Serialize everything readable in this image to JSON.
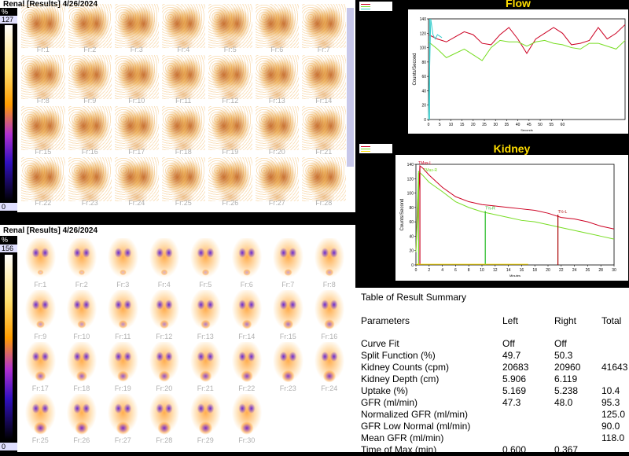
{
  "panel_top": {
    "title": "Renal [Results] 4/26/2024",
    "scale_unit": "%",
    "scale_max": "127",
    "scale_min": "0",
    "frames": [
      "Fr:1",
      "Fr:2",
      "Fr:3",
      "Fr:4",
      "Fr:5",
      "Fr:6",
      "Fr:7",
      "Fr:8",
      "Fr:9",
      "Fr:10",
      "Fr:11",
      "Fr:12",
      "Fr:13",
      "Fr:14",
      "Fr:15",
      "Fr:16",
      "Fr:17",
      "Fr:18",
      "Fr:19",
      "Fr:20",
      "Fr:21",
      "Fr:22",
      "Fr:23",
      "Fr:24",
      "Fr:25",
      "Fr:26",
      "Fr:27",
      "Fr:28"
    ]
  },
  "panel_bottom": {
    "title": "Renal [Results] 4/26/2024",
    "scale_unit": "%",
    "scale_max": "156",
    "scale_min": "0",
    "frames": [
      "Fr:1",
      "Fr:2",
      "Fr:3",
      "Fr:4",
      "Fr:5",
      "Fr:6",
      "Fr:7",
      "Fr:8",
      "Fr:9",
      "Fr:10",
      "Fr:11",
      "Fr:12",
      "Fr:13",
      "Fr:14",
      "Fr:15",
      "Fr:16",
      "Fr:17",
      "Fr:18",
      "Fr:19",
      "Fr:20",
      "Fr:21",
      "Fr:22",
      "Fr:23",
      "Fr:24",
      "Fr:25",
      "Fr:26",
      "Fr:27",
      "Fr:28",
      "Fr:29",
      "Fr:30"
    ]
  },
  "colors": {
    "left_curve": "#cc0022",
    "right_curve": "#77dd22",
    "title": "#ffde00",
    "aorta": "#33cccc"
  },
  "chart_data": [
    {
      "type": "line",
      "title": "Flow",
      "xlabel": "Seconds",
      "ylabel": "Counts/Second",
      "xlim": [
        0,
        88
      ],
      "ylim": [
        0,
        140
      ],
      "xticks": [
        0,
        5,
        10,
        15,
        20,
        25,
        30,
        35,
        40,
        45,
        50,
        55,
        60
      ],
      "yticks": [
        0,
        20,
        40,
        60,
        80,
        100,
        120,
        140
      ],
      "series": [
        {
          "name": "Left",
          "color": "#cc0022",
          "x": [
            0,
            4,
            8,
            12,
            16,
            20,
            24,
            28,
            32,
            36,
            40,
            44,
            48,
            52,
            56,
            60,
            64,
            68,
            72,
            76,
            80,
            84,
            88
          ],
          "values": [
            118,
            112,
            108,
            115,
            122,
            118,
            106,
            104,
            118,
            128,
            112,
            92,
            112,
            120,
            128,
            120,
            104,
            106,
            110,
            128,
            112,
            120,
            132
          ]
        },
        {
          "name": "Right",
          "color": "#77dd22",
          "x": [
            0,
            4,
            8,
            12,
            16,
            20,
            24,
            28,
            32,
            36,
            40,
            44,
            48,
            52,
            56,
            60,
            64,
            68,
            72,
            76,
            80,
            84,
            88
          ],
          "values": [
            108,
            98,
            86,
            92,
            98,
            90,
            82,
            100,
            110,
            108,
            108,
            102,
            108,
            110,
            106,
            104,
            100,
            98,
            106,
            106,
            102,
            98,
            110
          ]
        },
        {
          "name": "Aorta",
          "color": "#33cccc",
          "x": [
            0,
            1,
            2,
            3,
            4,
            6
          ],
          "values": [
            0,
            140,
            118,
            112,
            118,
            114
          ]
        }
      ]
    },
    {
      "type": "line",
      "title": "Kidney",
      "xlabel": "Minutes",
      "ylabel": "Counts/Second",
      "xlim": [
        0,
        30
      ],
      "ylim": [
        0,
        140
      ],
      "xticks": [
        0,
        2,
        4,
        6,
        8,
        10,
        12,
        14,
        16,
        18,
        20,
        22,
        24,
        26,
        28,
        30
      ],
      "yticks": [
        0,
        20,
        40,
        60,
        80,
        100,
        120,
        140
      ],
      "annotations": [
        "TMax-L",
        "TMax-R",
        "T½-R",
        "T½-L"
      ],
      "series": [
        {
          "name": "Left",
          "color": "#cc0022",
          "x": [
            0,
            0.6,
            1,
            2,
            4,
            6,
            8,
            10,
            12,
            14,
            16,
            18,
            20,
            22,
            24,
            26,
            28,
            30
          ],
          "values": [
            20,
            138,
            135,
            125,
            108,
            95,
            88,
            84,
            82,
            80,
            78,
            76,
            72,
            66,
            64,
            60,
            54,
            50
          ]
        },
        {
          "name": "Right",
          "color": "#77dd22",
          "x": [
            0,
            0.4,
            1,
            2,
            4,
            6,
            8,
            10,
            12,
            14,
            16,
            18,
            20,
            22,
            24,
            26,
            28,
            30
          ],
          "values": [
            18,
            130,
            125,
            115,
            102,
            88,
            80,
            74,
            70,
            66,
            62,
            60,
            56,
            52,
            48,
            44,
            40,
            36
          ]
        }
      ]
    }
  ],
  "table": {
    "title": "Table of Result Summary",
    "headers": [
      "Parameters",
      "Left",
      "Right",
      "Total"
    ],
    "rows": [
      [
        "Curve Fit",
        "Off",
        "Off",
        ""
      ],
      [
        "Split Function (%)",
        "49.7",
        "50.3",
        ""
      ],
      [
        "Kidney Counts (cpm)",
        "20683",
        "20960",
        "41643"
      ],
      [
        "Kidney Depth (cm)",
        "5.906",
        "6.119",
        ""
      ],
      [
        "Uptake (%)",
        "5.169",
        "5.238",
        "10.4"
      ],
      [
        "GFR (ml/min)",
        "47.3",
        "48.0",
        "95.3"
      ],
      [
        "Normalized GFR (ml/min)",
        "",
        "",
        "125.0"
      ],
      [
        "GFR Low Normal (ml/min)",
        "",
        "",
        "90.0"
      ],
      [
        "Mean GFR (ml/min)",
        "",
        "",
        "118.0"
      ],
      [
        "Time of Max (min)",
        "0.600",
        "0.367",
        ""
      ]
    ]
  }
}
